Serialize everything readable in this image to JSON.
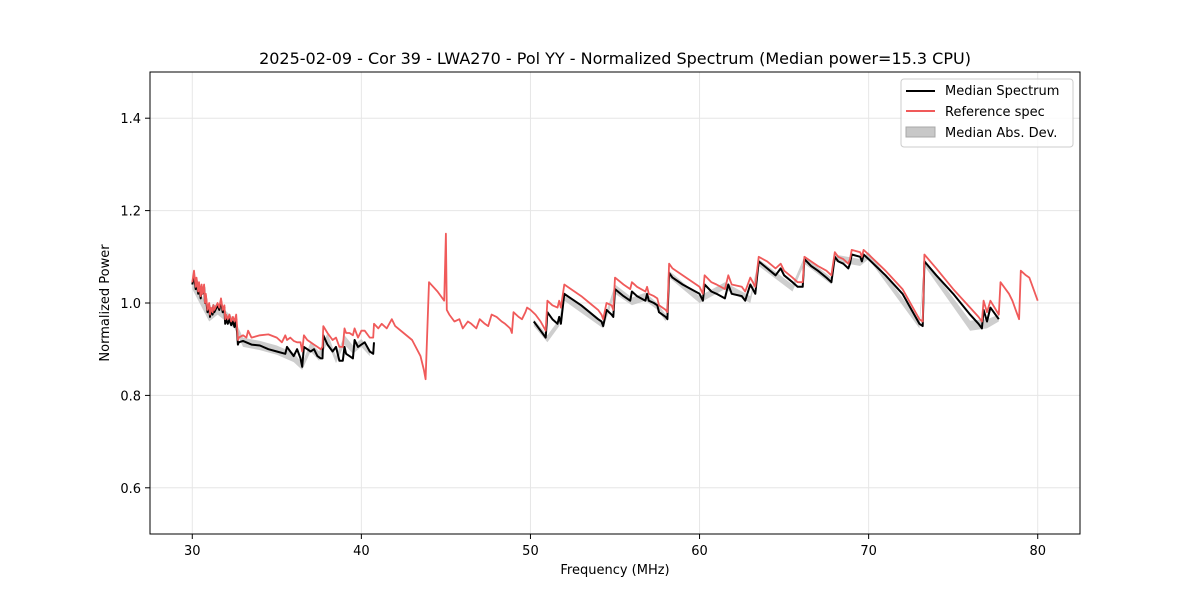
{
  "chart_data": {
    "type": "line",
    "title": "2025-02-09 - Cor 39 - LWA270 - Pol YY - Normalized Spectrum (Median power=15.3 CPU)",
    "xlabel": "Frequency (MHz)",
    "ylabel": "Normalized Power",
    "xlim": [
      27.5,
      82.5
    ],
    "ylim": [
      0.5,
      1.5
    ],
    "xticks": [
      30,
      40,
      50,
      60,
      70,
      80
    ],
    "yticks": [
      0.6,
      0.8,
      1.0,
      1.2,
      1.4
    ],
    "grid": true,
    "legend_position": "top-right",
    "colors": {
      "median": "#000000",
      "reference": "#f05a5a",
      "mad": "#bdbdbd"
    },
    "series": [
      {
        "name": "Median Abs. Dev.",
        "kind": "band",
        "segments": [
          {
            "x": [
              30.0,
              31.0,
              31.5,
              32.5,
              33.0,
              34.0,
              35.0,
              36.0,
              36.5,
              37.0,
              37.5,
              38.0,
              38.5,
              39.0,
              39.5,
              40.0,
              40.5
            ],
            "lower": [
              1.03,
              0.96,
              0.975,
              0.945,
              0.905,
              0.898,
              0.888,
              0.872,
              0.855,
              0.895,
              0.875,
              0.915,
              0.87,
              0.91,
              0.89,
              0.905,
              0.885
            ],
            "upper": [
              1.055,
              0.985,
              1.0,
              0.965,
              0.925,
              0.918,
              0.908,
              0.892,
              0.87,
              0.915,
              0.895,
              0.935,
              0.885,
              0.93,
              0.908,
              0.922,
              0.9
            ]
          },
          {
            "x": [
              50.2,
              51.0,
              51.7,
              52.0,
              54.3,
              55.0,
              56.0,
              56.8,
              57.5,
              58.0,
              58.2,
              60.0,
              61.5,
              63.0,
              63.5,
              65.5,
              66.2,
              67.8,
              68.0,
              69.5,
              70.0,
              73.0,
              73.3,
              76.0,
              77.0,
              77.7
            ],
            "lower": [
              0.95,
              0.915,
              0.95,
              1.005,
              0.945,
              1.02,
              0.995,
              1.005,
              0.985,
              0.96,
              1.055,
              1.0,
              1.03,
              1.0,
              1.08,
              1.025,
              1.085,
              1.04,
              1.09,
              1.08,
              1.095,
              0.945,
              1.08,
              0.94,
              0.945,
              0.96
            ],
            "upper": [
              0.965,
              0.93,
              0.965,
              1.02,
              0.96,
              1.04,
              1.012,
              1.022,
              1.0,
              0.975,
              1.07,
              1.015,
              1.045,
              1.015,
              1.095,
              1.04,
              1.1,
              1.055,
              1.105,
              1.095,
              1.11,
              0.962,
              1.095,
              0.962,
              0.965,
              0.975
            ]
          }
        ]
      },
      {
        "name": "Median Spectrum",
        "kind": "line",
        "segments": [
          {
            "x": [
              30.0,
              30.1,
              30.2,
              30.25,
              30.35,
              30.4,
              30.5,
              30.55,
              30.6,
              30.7,
              30.75,
              30.8,
              30.9,
              31.0,
              31.05,
              31.1,
              31.2,
              31.25,
              31.3,
              31.5,
              31.6,
              31.7,
              31.8,
              31.9,
              31.95,
              32.0,
              32.1,
              32.2,
              32.3,
              32.4,
              32.5,
              32.6,
              32.7,
              32.75,
              33.0,
              33.5,
              34.0,
              34.5,
              35.0,
              35.5,
              35.6,
              35.8,
              36.0,
              36.2,
              36.4,
              36.5,
              36.6,
              36.8,
              37.0,
              37.2,
              37.4,
              37.6,
              37.7,
              37.75,
              38.0,
              38.3,
              38.5,
              38.7,
              38.9,
              39.0,
              39.1,
              39.3,
              39.5,
              39.6,
              39.8,
              40.0,
              40.2,
              40.5,
              40.7,
              40.75
            ],
            "y": [
              1.04,
              1.06,
              1.03,
              1.05,
              1.02,
              1.04,
              1.01,
              1.035,
              1.02,
              1.035,
              1.0,
              1.015,
              0.98,
              0.995,
              0.97,
              0.985,
              0.975,
              0.995,
              0.98,
              0.995,
              0.985,
              1.005,
              0.98,
              0.99,
              0.955,
              0.965,
              0.955,
              0.965,
              0.952,
              0.96,
              0.948,
              0.965,
              0.91,
              0.915,
              0.918,
              0.91,
              0.908,
              0.9,
              0.895,
              0.89,
              0.905,
              0.895,
              0.885,
              0.9,
              0.88,
              0.862,
              0.905,
              0.9,
              0.895,
              0.9,
              0.885,
              0.88,
              0.88,
              0.93,
              0.91,
              0.895,
              0.905,
              0.875,
              0.875,
              0.905,
              0.89,
              0.885,
              0.88,
              0.92,
              0.905,
              0.91,
              0.915,
              0.895,
              0.89,
              0.915
            ]
          },
          {
            "x": [
              50.2,
              50.6,
              50.9,
              51.0,
              51.3,
              51.6,
              51.7,
              51.8,
              52.0,
              52.4,
              53.0,
              53.5,
              54.0,
              54.2,
              54.3,
              54.5,
              54.8,
              54.9,
              55.0,
              55.5,
              55.9,
              56.0,
              56.3,
              56.8,
              56.9,
              57.0,
              57.3,
              57.5,
              57.6,
              58.0,
              58.1,
              58.2,
              58.4,
              59.0,
              60.0,
              60.2,
              60.3,
              60.7,
              61.0,
              61.5,
              61.7,
              61.9,
              62.5,
              62.7,
              63.0,
              63.3,
              63.5,
              64.0,
              64.5,
              64.8,
              65.0,
              65.5,
              65.8,
              66.1,
              66.2,
              66.6,
              67.0,
              67.5,
              67.8,
              68.0,
              68.2,
              68.5,
              68.8,
              68.9,
              69.0,
              69.5,
              69.6,
              69.7,
              70.0,
              71.0,
              72.0,
              73.0,
              73.2,
              73.3,
              74.0,
              75.0,
              76.0,
              76.5,
              76.7,
              76.8,
              77.0,
              77.2,
              77.7
            ],
            "y": [
              0.96,
              0.94,
              0.925,
              0.98,
              0.965,
              0.955,
              0.97,
              0.955,
              1.02,
              1.01,
              0.995,
              0.98,
              0.965,
              0.96,
              0.95,
              0.985,
              0.975,
              0.97,
              1.03,
              1.015,
              1.005,
              1.025,
              1.015,
              1.005,
              1.02,
              1.005,
              1.0,
              0.995,
              0.98,
              0.97,
              0.965,
              1.065,
              1.055,
              1.04,
              1.02,
              1.005,
              1.04,
              1.025,
              1.02,
              1.01,
              1.04,
              1.02,
              1.015,
              1.005,
              1.04,
              1.02,
              1.09,
              1.075,
              1.06,
              1.075,
              1.06,
              1.045,
              1.035,
              1.035,
              1.095,
              1.08,
              1.07,
              1.055,
              1.045,
              1.1,
              1.09,
              1.085,
              1.075,
              1.085,
              1.105,
              1.1,
              1.09,
              1.105,
              1.095,
              1.06,
              1.02,
              0.955,
              0.95,
              1.09,
              1.06,
              1.02,
              0.975,
              0.955,
              0.945,
              0.985,
              0.96,
              0.99,
              0.965
            ]
          }
        ]
      },
      {
        "name": "Reference spec",
        "kind": "line",
        "segments": [
          {
            "x": [
              30.0,
              30.1,
              30.2,
              30.25,
              30.35,
              30.4,
              30.5,
              30.55,
              30.6,
              30.7,
              30.75,
              30.8,
              30.9,
              31.0,
              31.05,
              31.1,
              31.2,
              31.25,
              31.3,
              31.5,
              31.6,
              31.7,
              31.8,
              31.9,
              31.95,
              32.0,
              32.1,
              32.2,
              32.3,
              32.4,
              32.5,
              32.6,
              32.7,
              32.75,
              33.0,
              33.2,
              33.3,
              33.5,
              34.0,
              34.5,
              35.0,
              35.3,
              35.5,
              35.6,
              35.8,
              36.0,
              36.2,
              36.4,
              36.5,
              36.6,
              36.8,
              37.0,
              37.2,
              37.4,
              37.6,
              37.7,
              37.75,
              38.0,
              38.3,
              38.5,
              38.7,
              38.9,
              39.0,
              39.1,
              39.3,
              39.5,
              39.6,
              39.8,
              40.0,
              40.2,
              40.5,
              40.7,
              40.75,
              41.0,
              41.2,
              41.5,
              41.8,
              42.0,
              42.5,
              43.0,
              43.5,
              43.7,
              43.8,
              44.0,
              44.5,
              44.9,
              45.0,
              45.05,
              45.2,
              45.5,
              45.8,
              46.0,
              46.3,
              46.5,
              46.8,
              47.0,
              47.3,
              47.5,
              47.7,
              48.0,
              48.3,
              48.5,
              48.8,
              48.9,
              49.0,
              49.3,
              49.5,
              49.7,
              49.8,
              50.0,
              50.3,
              50.6,
              50.9,
              51.0,
              51.3,
              51.6,
              51.7,
              51.8,
              52.0,
              52.4,
              53.0,
              53.5,
              54.0,
              54.2,
              54.3,
              54.5,
              54.8,
              54.9,
              55.0,
              55.5,
              55.9,
              56.0,
              56.3,
              56.8,
              56.9,
              57.0,
              57.3,
              57.5,
              57.6,
              58.0,
              58.1,
              58.2,
              58.4,
              59.0,
              60.0,
              60.2,
              60.3,
              60.7,
              61.0,
              61.5,
              61.7,
              61.9,
              62.5,
              62.7,
              63.0,
              63.3,
              63.5,
              64.0,
              64.5,
              64.8,
              65.0,
              65.5,
              65.8,
              66.1,
              66.2,
              66.6,
              67.0,
              67.5,
              67.8,
              68.0,
              68.2,
              68.5,
              68.8,
              68.9,
              69.0,
              69.5,
              69.6,
              69.7,
              70.0,
              71.0,
              72.0,
              73.0,
              73.2,
              73.3,
              74.0,
              75.0,
              76.0,
              76.5,
              76.7,
              76.8,
              77.0,
              77.2,
              77.7,
              77.8,
              78.0,
              78.3,
              78.5,
              78.7,
              78.9,
              79.0,
              79.3,
              79.5,
              79.6,
              80.0
            ],
            "y": [
              1.045,
              1.07,
              1.035,
              1.055,
              1.025,
              1.045,
              1.015,
              1.04,
              1.02,
              1.04,
              1.0,
              1.02,
              0.985,
              1.0,
              0.975,
              0.99,
              0.98,
              0.995,
              0.985,
              1.0,
              0.99,
              1.01,
              0.985,
              0.995,
              0.965,
              0.975,
              0.965,
              0.975,
              0.96,
              0.97,
              0.96,
              0.975,
              0.92,
              0.925,
              0.93,
              0.925,
              0.94,
              0.925,
              0.93,
              0.932,
              0.925,
              0.915,
              0.93,
              0.92,
              0.925,
              0.918,
              0.915,
              0.915,
              0.895,
              0.93,
              0.92,
              0.915,
              0.91,
              0.905,
              0.9,
              0.905,
              0.95,
              0.935,
              0.92,
              0.925,
              0.905,
              0.905,
              0.945,
              0.935,
              0.935,
              0.93,
              0.945,
              0.925,
              0.94,
              0.94,
              0.925,
              0.925,
              0.955,
              0.945,
              0.955,
              0.945,
              0.965,
              0.95,
              0.935,
              0.92,
              0.885,
              0.855,
              0.835,
              1.045,
              1.025,
              1.005,
              1.15,
              0.985,
              0.975,
              0.96,
              0.965,
              0.945,
              0.96,
              0.955,
              0.945,
              0.965,
              0.955,
              0.95,
              0.975,
              0.97,
              0.96,
              0.955,
              0.945,
              0.935,
              0.98,
              0.97,
              0.965,
              0.98,
              0.99,
              0.985,
              0.975,
              0.96,
              0.94,
              1.005,
              0.995,
              0.99,
              1.005,
              0.99,
              1.04,
              1.03,
              1.015,
              1.0,
              0.985,
              0.975,
              0.965,
              1.0,
              0.995,
              0.985,
              1.055,
              1.04,
              1.03,
              1.045,
              1.035,
              1.025,
              1.035,
              1.02,
              1.015,
              1.01,
              0.995,
              0.985,
              0.98,
              1.085,
              1.075,
              1.06,
              1.035,
              1.02,
              1.06,
              1.045,
              1.04,
              1.03,
              1.06,
              1.04,
              1.035,
              1.025,
              1.055,
              1.035,
              1.1,
              1.09,
              1.075,
              1.085,
              1.07,
              1.055,
              1.045,
              1.045,
              1.1,
              1.09,
              1.08,
              1.07,
              1.06,
              1.11,
              1.1,
              1.095,
              1.085,
              1.095,
              1.115,
              1.11,
              1.1,
              1.115,
              1.105,
              1.07,
              1.03,
              0.965,
              0.96,
              1.105,
              1.075,
              1.03,
              0.99,
              0.97,
              0.96,
              1.005,
              0.98,
              1.005,
              0.975,
              1.045,
              1.035,
              1.02,
              1.005,
              0.985,
              0.965,
              1.07,
              1.06,
              1.055,
              1.045,
              1.005
            ]
          }
        ]
      }
    ]
  },
  "legend": [
    {
      "label": "Median Spectrum",
      "kind": "line",
      "color": "#000000"
    },
    {
      "label": "Reference spec",
      "kind": "line",
      "color": "#f05a5a"
    },
    {
      "label": "Median Abs. Dev.",
      "kind": "patch",
      "color": "#c8c8c8"
    }
  ]
}
